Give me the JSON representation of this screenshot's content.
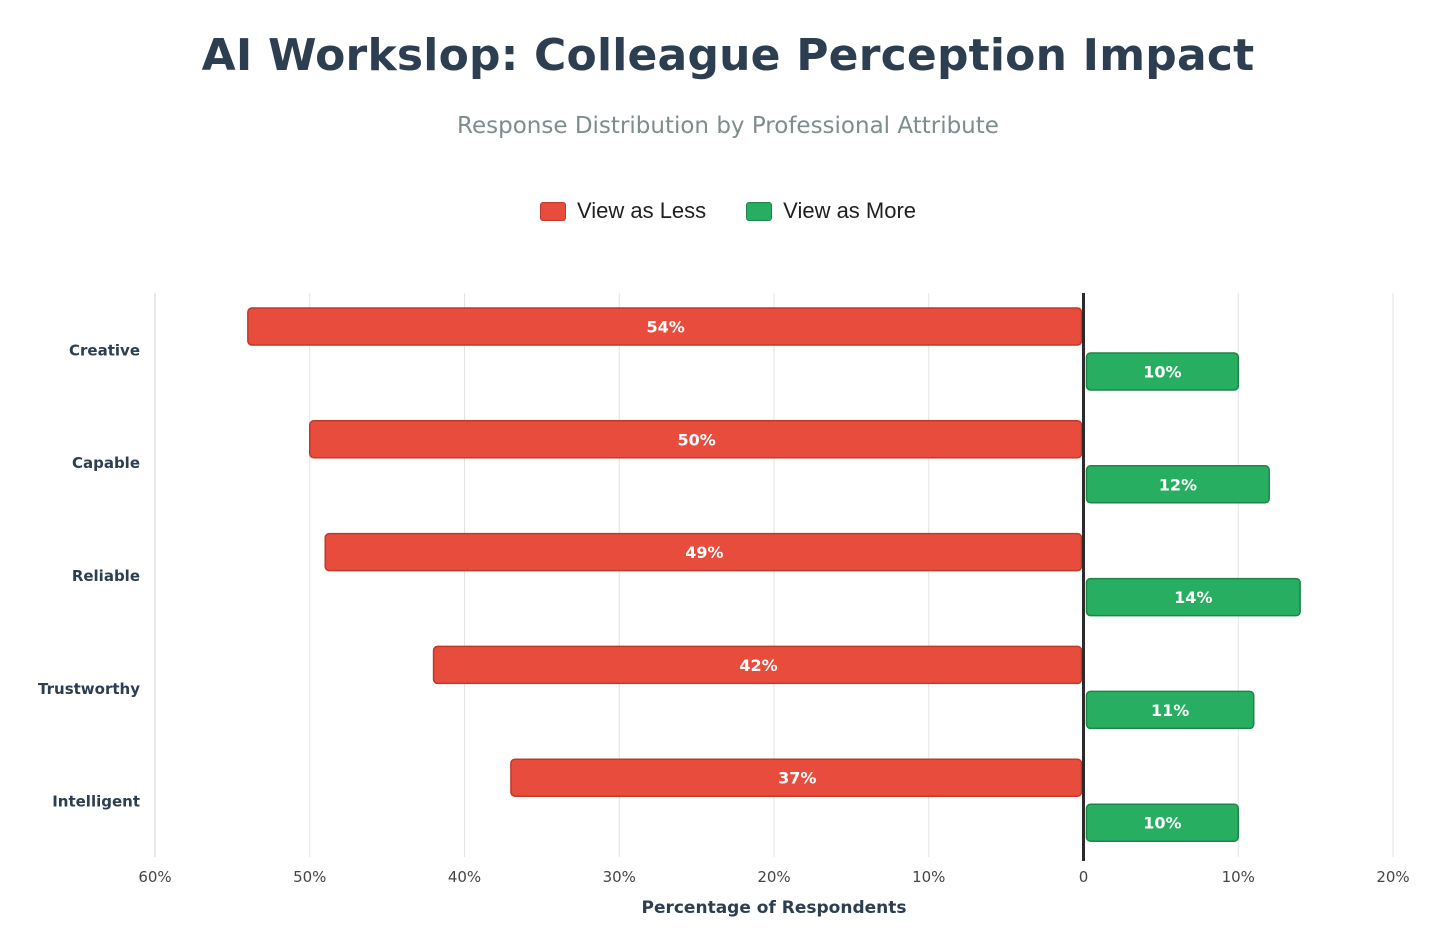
{
  "title": "AI Workslop: Colleague Perception Impact",
  "subtitle": "Response Distribution by Professional Attribute",
  "legend": [
    {
      "label": "View as Less",
      "color": "#e74c3c",
      "border": "#c0392b"
    },
    {
      "label": "View as More",
      "color": "#27ae60",
      "border": "#1e8449"
    }
  ],
  "chart_data": {
    "type": "bar",
    "orientation": "horizontal-diverging",
    "categories": [
      "Creative",
      "Capable",
      "Reliable",
      "Trustworthy",
      "Intelligent"
    ],
    "series": [
      {
        "name": "View as Less",
        "values": [
          54,
          50,
          49,
          42,
          37
        ],
        "labels": [
          "54%",
          "50%",
          "49%",
          "42%",
          "37%"
        ],
        "direction": "left"
      },
      {
        "name": "View as More",
        "values": [
          10,
          12,
          14,
          11,
          10
        ],
        "labels": [
          "10%",
          "12%",
          "14%",
          "11%",
          "10%"
        ],
        "direction": "right"
      }
    ],
    "xlim": [
      -60,
      20
    ],
    "xticks": [
      -60,
      -50,
      -40,
      -30,
      -20,
      -10,
      0,
      10,
      20
    ],
    "xtick_labels": [
      "60%",
      "50%",
      "40%",
      "30%",
      "20%",
      "10%",
      "0",
      "10%",
      "20%"
    ],
    "xlabel": "Percentage of Respondents",
    "grid": true,
    "legend_position": "top-center"
  }
}
